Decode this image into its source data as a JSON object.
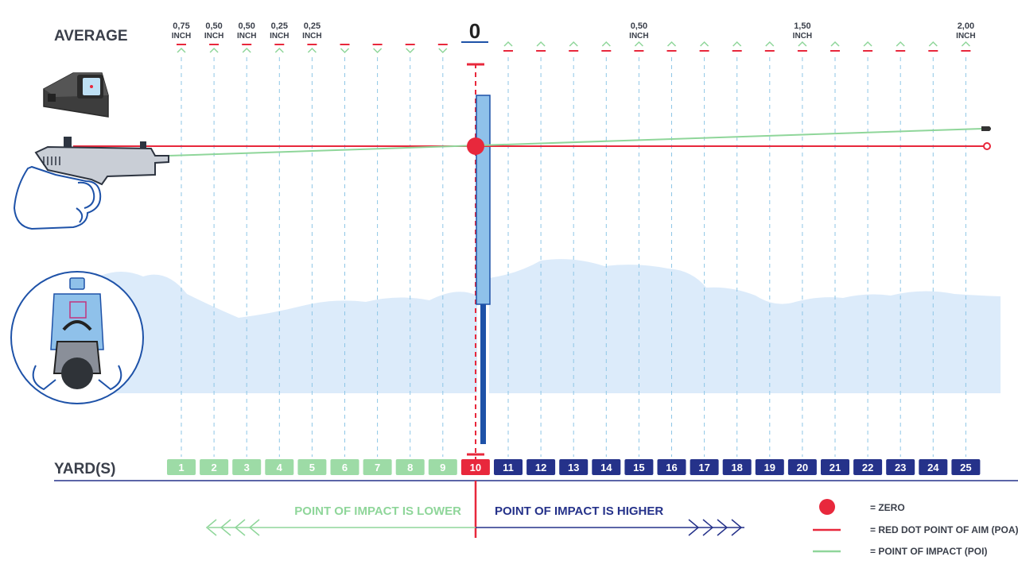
{
  "title": "AVERAGE",
  "zero_label": "0",
  "axis_label": "YARD(S)",
  "chart_data": {
    "type": "zeroing-diagram",
    "yards": [
      1,
      2,
      3,
      4,
      5,
      6,
      7,
      8,
      9,
      10,
      11,
      12,
      13,
      14,
      15,
      16,
      17,
      18,
      19,
      20,
      21,
      22,
      23,
      24,
      25
    ],
    "zero_yard": 10,
    "deviation_labels": [
      {
        "yard": 1,
        "value": "0,75",
        "unit": "INCH"
      },
      {
        "yard": 2,
        "value": "0,50",
        "unit": "INCH"
      },
      {
        "yard": 3,
        "value": "0,50",
        "unit": "INCH"
      },
      {
        "yard": 4,
        "value": "0,25",
        "unit": "INCH"
      },
      {
        "yard": 5,
        "value": "0,25",
        "unit": "INCH"
      },
      {
        "yard": 15,
        "value": "0,50",
        "unit": "INCH"
      },
      {
        "yard": 20,
        "value": "1,50",
        "unit": "INCH"
      },
      {
        "yard": 25,
        "value": "2,00",
        "unit": "INCH"
      }
    ]
  },
  "direction": {
    "lower": "POINT OF IMPACT IS LOWER",
    "higher": "POINT OF IMPACT IS HIGHER"
  },
  "legend": [
    {
      "key": "zero",
      "label": "= ZERO"
    },
    {
      "key": "poa",
      "label": "= RED DOT POINT OF AIM (POA)"
    },
    {
      "key": "poi",
      "label": "= POINT OF IMPACT (POI)"
    }
  ],
  "colors": {
    "red": "#e8283c",
    "green": "#8fd69a",
    "green_box": "#9ddba6",
    "navy": "#25328a",
    "light_blue": "#dcebfa",
    "pillar_blue": "#8fc1ea",
    "dark_blue": "#1e52a8",
    "dash_blue": "#8ec6e6",
    "outline": "#2a4a6e",
    "text_dark": "#3a3f4a"
  }
}
